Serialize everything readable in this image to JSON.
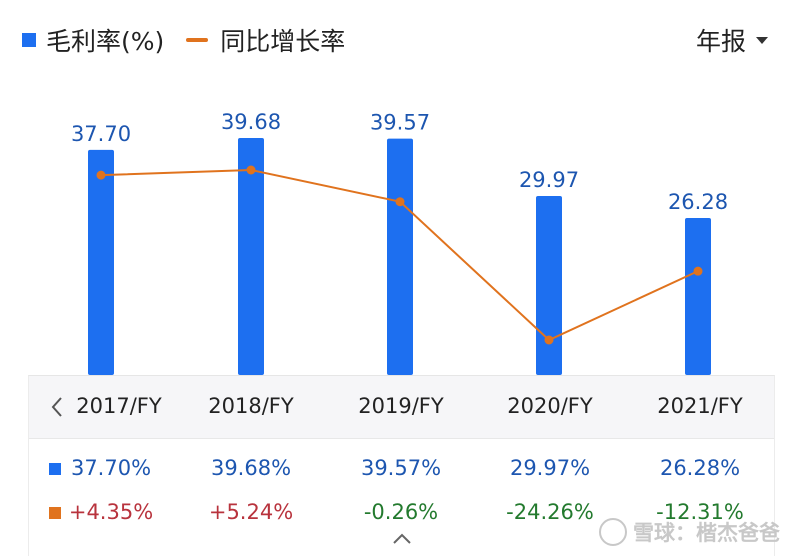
{
  "legend": {
    "bar_label": "毛利率(%)",
    "line_label": "同比增长率"
  },
  "period_selector": {
    "label": "年报"
  },
  "chart_data": {
    "type": "bar",
    "categories": [
      "2017/FY",
      "2018/FY",
      "2019/FY",
      "2020/FY",
      "2021/FY"
    ],
    "series": [
      {
        "name": "毛利率(%)",
        "type": "bar",
        "color": "#1d6ff0",
        "values": [
          37.7,
          39.68,
          39.57,
          29.97,
          26.28
        ],
        "labels": [
          "37.70",
          "39.68",
          "39.57",
          "29.97",
          "26.28"
        ]
      },
      {
        "name": "同比增长率",
        "type": "line",
        "color": "#e0731e",
        "values": [
          4.35,
          5.24,
          -0.26,
          -24.26,
          -12.31
        ]
      }
    ]
  },
  "table": {
    "years": [
      "2017/FY",
      "2018/FY",
      "2019/FY",
      "2020/FY",
      "2021/FY"
    ],
    "margin": [
      "37.70%",
      "39.68%",
      "39.57%",
      "29.97%",
      "26.28%"
    ],
    "growth": [
      "+4.35%",
      "+5.24%",
      "-0.26%",
      "-24.26%",
      "-12.31%"
    ]
  },
  "colors": {
    "bar": "#1d6ff0",
    "line": "#e0731e",
    "bar_label": "#1d56b0",
    "positive": "#b8333d",
    "negative": "#237a2e"
  },
  "watermark": {
    "text": "雪球：楷杰爸爸"
  }
}
